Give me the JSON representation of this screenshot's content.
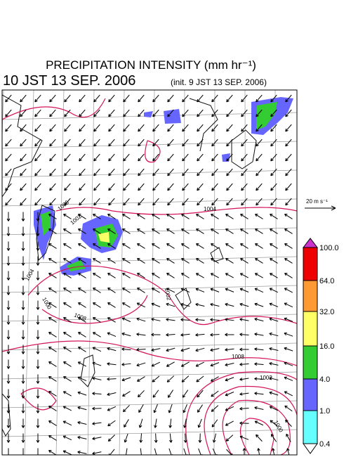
{
  "header": {
    "title": "PRECIPITATION INTENSITY (mm hr⁻¹)",
    "valid_time": "10 JST 13 SEP. 2006",
    "init_time": "(init. 9 JST 13 SEP. 2006)"
  },
  "wind_scale": {
    "label": "20 m s⁻¹"
  },
  "isobar_labels": [
    "1006",
    "1002",
    "1004",
    "1004",
    "1000",
    "1008",
    "1002",
    "1008",
    "1000",
    "1002"
  ],
  "colorbar": {
    "labels": [
      "100.0",
      "64.0",
      "32.0",
      "16.0",
      "4.0",
      "1.0",
      "0.4"
    ],
    "colors": [
      "#cc33cc",
      "#ee0000",
      "#ff9933",
      "#ffff66",
      "#33cc33",
      "#6666ff",
      "#66ffff",
      "#ffffff"
    ]
  }
}
